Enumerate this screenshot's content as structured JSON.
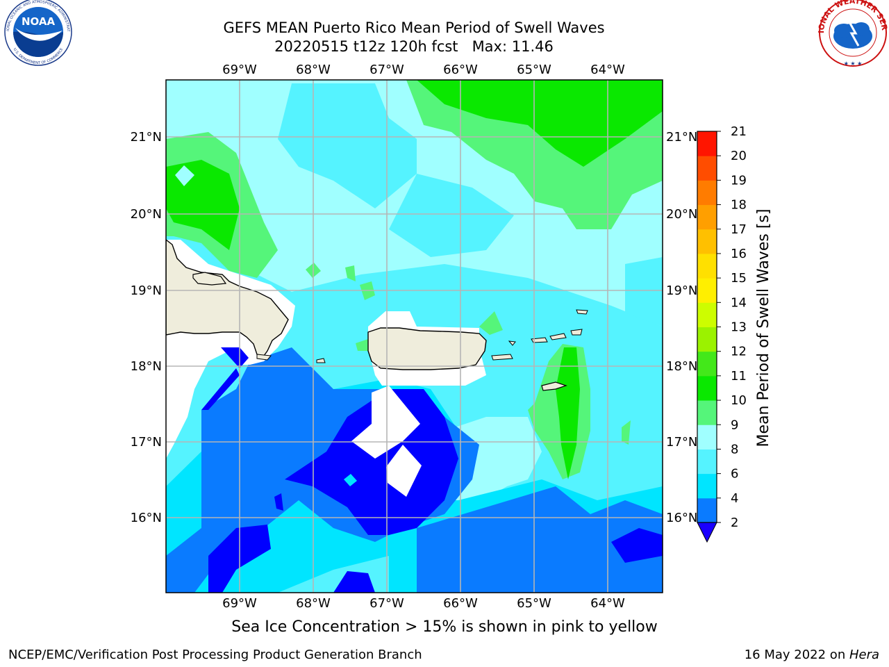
{
  "title": {
    "line1": "GEFS MEAN Puerto Rico Mean Period of Swell Waves",
    "line2": "20220515 t12z 120h fcst   Max: 11.46"
  },
  "logos": {
    "left": "NOAA",
    "left_ring_top": "NATIONAL OCEANIC AND ATMOSPHERIC ADMINISTRATION",
    "left_ring_bottom": "U.S. DEPARTMENT OF COMMERCE",
    "right_ring": "NATIONAL WEATHER SERVICE"
  },
  "map": {
    "lon_labels": [
      "69°W",
      "68°W",
      "67°W",
      "66°W",
      "65°W",
      "64°W"
    ],
    "lat_labels": [
      "21°N",
      "20°N",
      "19°N",
      "18°N",
      "17°N",
      "16°N"
    ],
    "land_color": "#efeddc",
    "max_value": 11.46
  },
  "colorbar": {
    "label": "Mean Period of Swell Waves [s]",
    "ticks": [
      "2",
      "4",
      "6",
      "8",
      "9",
      "10",
      "11",
      "12",
      "13",
      "14",
      "15",
      "16",
      "17",
      "18",
      "19",
      "20",
      "21"
    ],
    "colors": [
      "#0000ff",
      "#0a7bff",
      "#00e5ff",
      "#55f3ff",
      "#a0ffff",
      "#55f57a",
      "#0ae800",
      "#43e81a",
      "#9bf200",
      "#cdfd00",
      "#ffef00",
      "#ffe000",
      "#ffc000",
      "#ff9f00",
      "#ff7c00",
      "#ff4d00",
      "#ff1500"
    ],
    "below_color": "#1a00ff"
  },
  "sea_ice_note": "Sea Ice Concentration > 15% is shown in pink to yellow",
  "footer": {
    "left": "NCEP/EMC/Verification Post Processing Product Generation Branch",
    "right_date": "16 May 2022 on ",
    "right_machine": "Hera"
  }
}
